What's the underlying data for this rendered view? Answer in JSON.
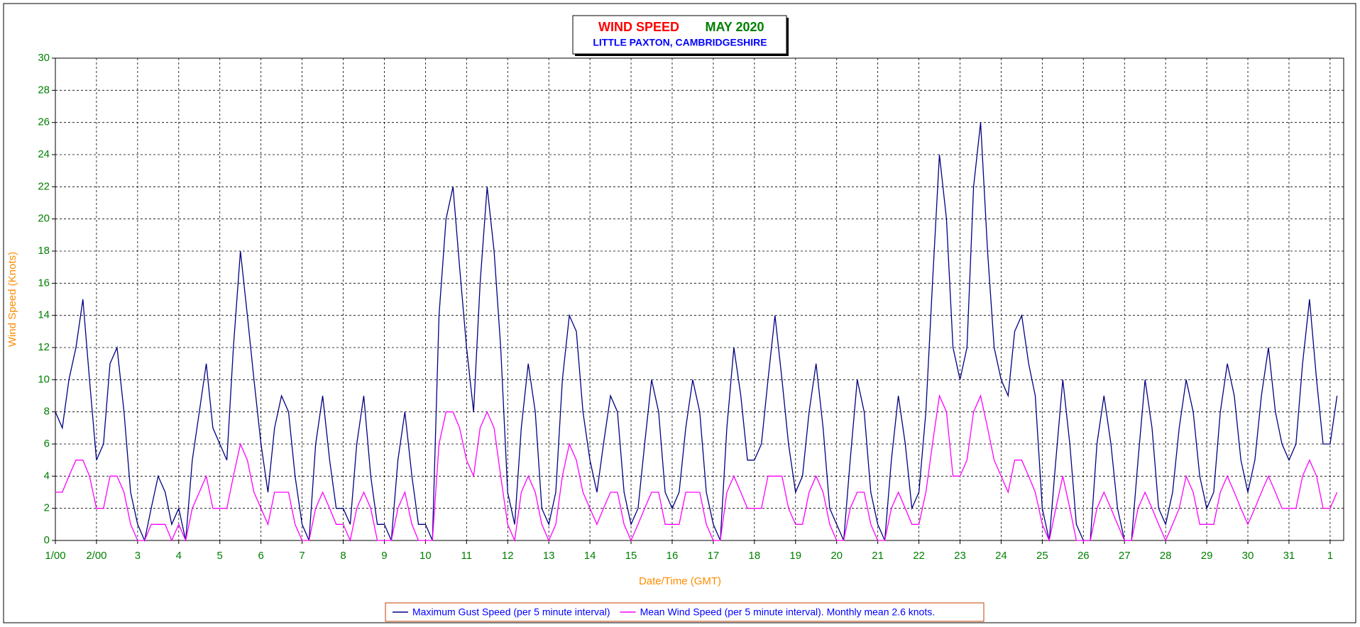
{
  "chart_data": {
    "type": "line",
    "title": "WIND SPEED",
    "title_color": "#ff0000",
    "title2": "MAY 2020",
    "title2_color": "#008000",
    "subtitle": "LITTLE PAXTON, CAMBRIDGESHIRE",
    "subtitle_color": "#0000ff",
    "xlabel": "Date/Time (GMT)",
    "ylabel": "Wind Speed (Knots)",
    "xlim": [
      1,
      32.33
    ],
    "ylim": [
      0,
      30
    ],
    "xticks": [
      {
        "value": 1,
        "label": "1/00"
      },
      {
        "value": 2,
        "label": "2/00"
      },
      3,
      4,
      5,
      6,
      7,
      8,
      9,
      10,
      11,
      12,
      13,
      14,
      15,
      16,
      17,
      18,
      19,
      20,
      21,
      22,
      23,
      24,
      25,
      26,
      27,
      28,
      29,
      30,
      31,
      {
        "value": 32,
        "label": "1"
      }
    ],
    "yticks": [
      0,
      2,
      4,
      6,
      8,
      10,
      12,
      14,
      16,
      18,
      20,
      22,
      24,
      26,
      28,
      30
    ],
    "grid": true,
    "x": [
      1,
      1.17,
      1.33,
      1.5,
      1.67,
      1.83,
      2,
      2.17,
      2.33,
      2.5,
      2.67,
      2.83,
      3,
      3.17,
      3.33,
      3.5,
      3.67,
      3.83,
      4,
      4.17,
      4.33,
      4.5,
      4.67,
      4.83,
      5,
      5.17,
      5.33,
      5.5,
      5.67,
      5.83,
      6,
      6.17,
      6.33,
      6.5,
      6.67,
      6.83,
      7,
      7.17,
      7.33,
      7.5,
      7.67,
      7.83,
      8,
      8.17,
      8.33,
      8.5,
      8.67,
      8.83,
      9,
      9.17,
      9.33,
      9.5,
      9.67,
      9.83,
      10,
      10.17,
      10.33,
      10.5,
      10.67,
      10.83,
      11,
      11.17,
      11.33,
      11.5,
      11.67,
      11.83,
      12,
      12.17,
      12.33,
      12.5,
      12.67,
      12.83,
      13,
      13.17,
      13.33,
      13.5,
      13.67,
      13.83,
      14,
      14.17,
      14.33,
      14.5,
      14.67,
      14.83,
      15,
      15.17,
      15.33,
      15.5,
      15.67,
      15.83,
      16,
      16.17,
      16.33,
      16.5,
      16.67,
      16.83,
      17,
      17.17,
      17.33,
      17.5,
      17.67,
      17.83,
      18,
      18.17,
      18.33,
      18.5,
      18.67,
      18.83,
      19,
      19.17,
      19.33,
      19.5,
      19.67,
      19.83,
      20,
      20.17,
      20.33,
      20.5,
      20.67,
      20.83,
      21,
      21.17,
      21.33,
      21.5,
      21.67,
      21.83,
      22,
      22.17,
      22.33,
      22.5,
      22.67,
      22.83,
      23,
      23.17,
      23.33,
      23.5,
      23.67,
      23.83,
      24,
      24.17,
      24.33,
      24.5,
      24.67,
      24.83,
      25,
      25.17,
      25.33,
      25.5,
      25.67,
      25.83,
      26,
      26.17,
      26.33,
      26.5,
      26.67,
      26.83,
      27,
      27.17,
      27.33,
      27.5,
      27.67,
      27.83,
      28,
      28.17,
      28.33,
      28.5,
      28.67,
      28.83,
      29,
      29.17,
      29.33,
      29.5,
      29.67,
      29.83,
      30,
      30.17,
      30.33,
      30.5,
      30.67,
      30.83,
      31,
      31.17,
      31.33,
      31.5,
      31.67,
      31.83,
      32,
      32.17
    ],
    "series": [
      {
        "name": "Maximum Gust Speed (per 5 minute interval)",
        "color": "#000080",
        "values": [
          8,
          7,
          10,
          12,
          15,
          10,
          5,
          6,
          11,
          12,
          8,
          3,
          1,
          0,
          2,
          4,
          3,
          1,
          2,
          0,
          5,
          8,
          11,
          7,
          6,
          5,
          12,
          18,
          14,
          10,
          6,
          3,
          7,
          9,
          8,
          4,
          1,
          0,
          6,
          9,
          5,
          2,
          2,
          1,
          6,
          9,
          4,
          1,
          1,
          0,
          5,
          8,
          4,
          1,
          1,
          0,
          14,
          20,
          22,
          17,
          12,
          8,
          16,
          22,
          18,
          12,
          3,
          1,
          7,
          11,
          8,
          2,
          1,
          3,
          10,
          14,
          13,
          8,
          5,
          3,
          6,
          9,
          8,
          3,
          1,
          2,
          6,
          10,
          8,
          3,
          2,
          3,
          7,
          10,
          8,
          3,
          1,
          0,
          7,
          12,
          9,
          5,
          5,
          6,
          10,
          14,
          10,
          6,
          3,
          4,
          8,
          11,
          7,
          2,
          1,
          0,
          5,
          10,
          8,
          3,
          1,
          0,
          5,
          9,
          6,
          2,
          3,
          8,
          16,
          24,
          20,
          12,
          10,
          12,
          22,
          26,
          18,
          12,
          10,
          9,
          13,
          14,
          11,
          9,
          2,
          0,
          5,
          10,
          6,
          1,
          0,
          0,
          6,
          9,
          6,
          2,
          0,
          0,
          5,
          10,
          7,
          2,
          1,
          3,
          7,
          10,
          8,
          4,
          2,
          3,
          8,
          11,
          9,
          5,
          3,
          5,
          9,
          12,
          8,
          6,
          5,
          6,
          11,
          15,
          10,
          6,
          6,
          9
        ]
      },
      {
        "name": "Mean Wind Speed (per 5 minute interval). Monthly mean 2.6 knots.",
        "color": "#ff00ff",
        "values": [
          3,
          3,
          4,
          5,
          5,
          4,
          2,
          2,
          4,
          4,
          3,
          1,
          0,
          0,
          1,
          1,
          1,
          0,
          1,
          0,
          2,
          3,
          4,
          2,
          2,
          2,
          4,
          6,
          5,
          3,
          2,
          1,
          3,
          3,
          3,
          1,
          0,
          0,
          2,
          3,
          2,
          1,
          1,
          0,
          2,
          3,
          2,
          0,
          0,
          0,
          2,
          3,
          1,
          0,
          0,
          0,
          6,
          8,
          8,
          7,
          5,
          4,
          7,
          8,
          7,
          4,
          1,
          0,
          3,
          4,
          3,
          1,
          0,
          1,
          4,
          6,
          5,
          3,
          2,
          1,
          2,
          3,
          3,
          1,
          0,
          1,
          2,
          3,
          3,
          1,
          1,
          1,
          3,
          3,
          3,
          1,
          0,
          0,
          3,
          4,
          3,
          2,
          2,
          2,
          4,
          4,
          4,
          2,
          1,
          1,
          3,
          4,
          3,
          1,
          0,
          0,
          2,
          3,
          3,
          1,
          0,
          0,
          2,
          3,
          2,
          1,
          1,
          3,
          6,
          9,
          8,
          4,
          4,
          5,
          8,
          9,
          7,
          5,
          4,
          3,
          5,
          5,
          4,
          3,
          1,
          0,
          2,
          4,
          2,
          0,
          0,
          0,
          2,
          3,
          2,
          1,
          0,
          0,
          2,
          3,
          2,
          1,
          0,
          1,
          2,
          4,
          3,
          1,
          1,
          1,
          3,
          4,
          3,
          2,
          1,
          2,
          3,
          4,
          3,
          2,
          2,
          2,
          4,
          5,
          4,
          2,
          2,
          3
        ]
      }
    ]
  }
}
